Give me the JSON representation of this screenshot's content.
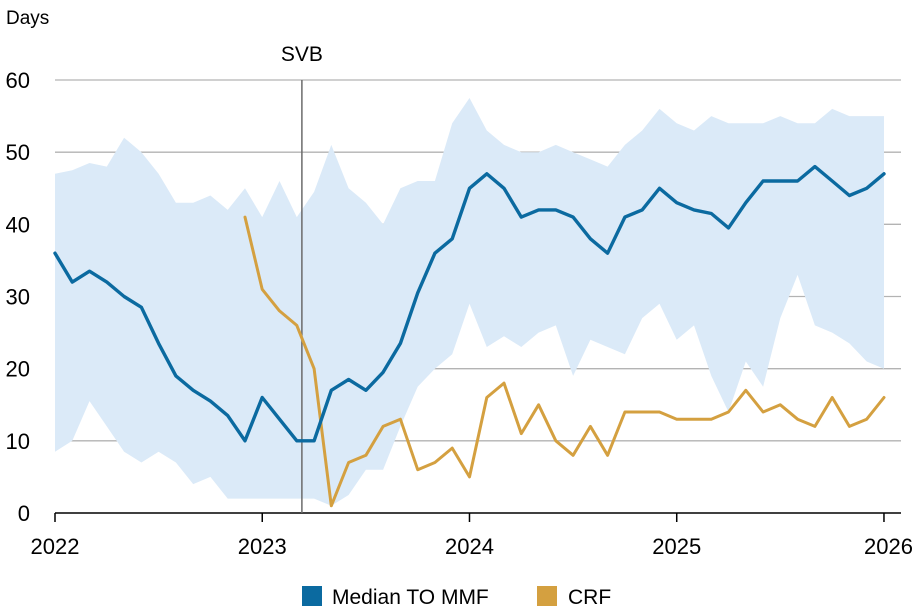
{
  "chart_data": {
    "type": "line",
    "ylabel": "Days",
    "xlabel": "",
    "ylim": [
      0,
      60
    ],
    "yticks": [
      0,
      10,
      20,
      30,
      40,
      50,
      60
    ],
    "xlim": [
      "2022-01-01",
      "2026-01-31"
    ],
    "xticks": [
      "2022",
      "2023",
      "2024",
      "2025",
      "2026"
    ],
    "grid": "horizontal",
    "legend_position": "bottom",
    "annotations": [
      {
        "label": "SVB",
        "date": "2023-03-10"
      }
    ],
    "colors": {
      "median": "#0b6aa0",
      "crf": "#d4a040",
      "band": "#dbeaf8",
      "grid": "#b3b3b3",
      "vline": "#6b6b6b"
    },
    "series": [
      {
        "name": "Median TO MMF",
        "key": "median",
        "data": [
          [
            "2022-01",
            36
          ],
          [
            "2022-02",
            32
          ],
          [
            "2022-03",
            33.5
          ],
          [
            "2022-04",
            32
          ],
          [
            "2022-05",
            30
          ],
          [
            "2022-06",
            28.5
          ],
          [
            "2022-07",
            23.5
          ],
          [
            "2022-08",
            19
          ],
          [
            "2022-09",
            17
          ],
          [
            "2022-10",
            15.5
          ],
          [
            "2022-11",
            13.5
          ],
          [
            "2022-12",
            10
          ],
          [
            "2023-01",
            16
          ],
          [
            "2023-02",
            13
          ],
          [
            "2023-03",
            10
          ],
          [
            "2023-04",
            10
          ],
          [
            "2023-05",
            17
          ],
          [
            "2023-06",
            18.5
          ],
          [
            "2023-07",
            17
          ],
          [
            "2023-08",
            19.5
          ],
          [
            "2023-09",
            23.5
          ],
          [
            "2023-10",
            30.5
          ],
          [
            "2023-11",
            36
          ],
          [
            "2023-12",
            38
          ],
          [
            "2024-01",
            45
          ],
          [
            "2024-02",
            47
          ],
          [
            "2024-03",
            45
          ],
          [
            "2024-04",
            41
          ],
          [
            "2024-05",
            42
          ],
          [
            "2024-06",
            42
          ],
          [
            "2024-07",
            41
          ],
          [
            "2024-08",
            38
          ],
          [
            "2024-09",
            36
          ],
          [
            "2024-10",
            41
          ],
          [
            "2024-11",
            42
          ],
          [
            "2024-12",
            45
          ],
          [
            "2025-01",
            43
          ],
          [
            "2025-02",
            42
          ],
          [
            "2025-03",
            41.5
          ],
          [
            "2025-04",
            39.5
          ],
          [
            "2025-05",
            43
          ],
          [
            "2025-06",
            46
          ],
          [
            "2025-07",
            46
          ],
          [
            "2025-08",
            46
          ],
          [
            "2025-09",
            48
          ],
          [
            "2025-10",
            46
          ],
          [
            "2025-11",
            44
          ],
          [
            "2025-12",
            45
          ],
          [
            "2026-01",
            47
          ]
        ]
      },
      {
        "name": "CRF",
        "key": "crf",
        "data": [
          [
            "2022-12",
            41
          ],
          [
            "2023-01",
            31
          ],
          [
            "2023-02",
            28
          ],
          [
            "2023-03",
            26
          ],
          [
            "2023-04",
            20
          ],
          [
            "2023-05",
            1
          ],
          [
            "2023-06",
            7
          ],
          [
            "2023-07",
            8
          ],
          [
            "2023-08",
            12
          ],
          [
            "2023-09",
            13
          ],
          [
            "2023-10",
            6
          ],
          [
            "2023-11",
            7
          ],
          [
            "2023-12",
            9
          ],
          [
            "2024-01",
            5
          ],
          [
            "2024-02",
            16
          ],
          [
            "2024-03",
            18
          ],
          [
            "2024-04",
            11
          ],
          [
            "2024-05",
            15
          ],
          [
            "2024-06",
            10
          ],
          [
            "2024-07",
            8
          ],
          [
            "2024-08",
            12
          ],
          [
            "2024-09",
            8
          ],
          [
            "2024-10",
            14
          ],
          [
            "2024-11",
            14
          ],
          [
            "2024-12",
            14
          ],
          [
            "2025-01",
            13
          ],
          [
            "2025-02",
            13
          ],
          [
            "2025-03",
            13
          ],
          [
            "2025-04",
            14
          ],
          [
            "2025-05",
            17
          ],
          [
            "2025-06",
            14
          ],
          [
            "2025-07",
            15
          ],
          [
            "2025-08",
            13
          ],
          [
            "2025-09",
            12
          ],
          [
            "2025-10",
            16
          ],
          [
            "2025-11",
            12
          ],
          [
            "2025-12",
            13
          ],
          [
            "2026-01",
            16
          ]
        ]
      }
    ],
    "band": {
      "upper": [
        [
          "2022-01",
          47
        ],
        [
          "2022-02",
          47.5
        ],
        [
          "2022-03",
          48.5
        ],
        [
          "2022-04",
          48
        ],
        [
          "2022-05",
          52
        ],
        [
          "2022-06",
          50
        ],
        [
          "2022-07",
          47
        ],
        [
          "2022-08",
          43
        ],
        [
          "2022-09",
          43
        ],
        [
          "2022-10",
          44
        ],
        [
          "2022-11",
          42
        ],
        [
          "2022-12",
          45
        ],
        [
          "2023-01",
          41
        ],
        [
          "2023-02",
          46
        ],
        [
          "2023-03",
          41
        ],
        [
          "2023-04",
          44.5
        ],
        [
          "2023-05",
          51
        ],
        [
          "2023-06",
          45
        ],
        [
          "2023-07",
          43
        ],
        [
          "2023-08",
          40
        ],
        [
          "2023-09",
          45
        ],
        [
          "2023-10",
          46
        ],
        [
          "2023-11",
          46
        ],
        [
          "2023-12",
          54
        ],
        [
          "2024-01",
          57.5
        ],
        [
          "2024-02",
          53
        ],
        [
          "2024-03",
          51
        ],
        [
          "2024-04",
          50
        ],
        [
          "2024-05",
          50
        ],
        [
          "2024-06",
          51
        ],
        [
          "2024-07",
          50
        ],
        [
          "2024-08",
          49
        ],
        [
          "2024-09",
          48
        ],
        [
          "2024-10",
          51
        ],
        [
          "2024-11",
          53
        ],
        [
          "2024-12",
          56
        ],
        [
          "2025-01",
          54
        ],
        [
          "2025-02",
          53
        ],
        [
          "2025-03",
          55
        ],
        [
          "2025-04",
          54
        ],
        [
          "2025-05",
          54
        ],
        [
          "2025-06",
          54
        ],
        [
          "2025-07",
          55
        ],
        [
          "2025-08",
          54
        ],
        [
          "2025-09",
          54
        ],
        [
          "2025-10",
          56
        ],
        [
          "2025-11",
          55
        ],
        [
          "2025-12",
          55
        ],
        [
          "2026-01",
          55
        ]
      ],
      "lower": [
        [
          "2022-01",
          8.5
        ],
        [
          "2022-02",
          10
        ],
        [
          "2022-03",
          15.5
        ],
        [
          "2022-04",
          12
        ],
        [
          "2022-05",
          8.5
        ],
        [
          "2022-06",
          7
        ],
        [
          "2022-07",
          8.5
        ],
        [
          "2022-08",
          7
        ],
        [
          "2022-09",
          4
        ],
        [
          "2022-10",
          5
        ],
        [
          "2022-11",
          2
        ],
        [
          "2022-12",
          2
        ],
        [
          "2023-01",
          2
        ],
        [
          "2023-02",
          2
        ],
        [
          "2023-03",
          2
        ],
        [
          "2023-04",
          2
        ],
        [
          "2023-05",
          1
        ],
        [
          "2023-06",
          2.5
        ],
        [
          "2023-07",
          6
        ],
        [
          "2023-08",
          6
        ],
        [
          "2023-09",
          12
        ],
        [
          "2023-10",
          17.5
        ],
        [
          "2023-11",
          20
        ],
        [
          "2023-12",
          22
        ],
        [
          "2024-01",
          29
        ],
        [
          "2024-02",
          23
        ],
        [
          "2024-03",
          24.5
        ],
        [
          "2024-04",
          23
        ],
        [
          "2024-05",
          25
        ],
        [
          "2024-06",
          26
        ],
        [
          "2024-07",
          19
        ],
        [
          "2024-08",
          24
        ],
        [
          "2024-09",
          23
        ],
        [
          "2024-10",
          22
        ],
        [
          "2024-11",
          27
        ],
        [
          "2024-12",
          29
        ],
        [
          "2025-01",
          24
        ],
        [
          "2025-02",
          26
        ],
        [
          "2025-03",
          19
        ],
        [
          "2025-04",
          14
        ],
        [
          "2025-05",
          21
        ],
        [
          "2025-06",
          17.5
        ],
        [
          "2025-07",
          27
        ],
        [
          "2025-08",
          33
        ],
        [
          "2025-09",
          26
        ],
        [
          "2025-10",
          25
        ],
        [
          "2025-11",
          23.5
        ],
        [
          "2025-12",
          21
        ],
        [
          "2026-01",
          20
        ]
      ]
    }
  }
}
